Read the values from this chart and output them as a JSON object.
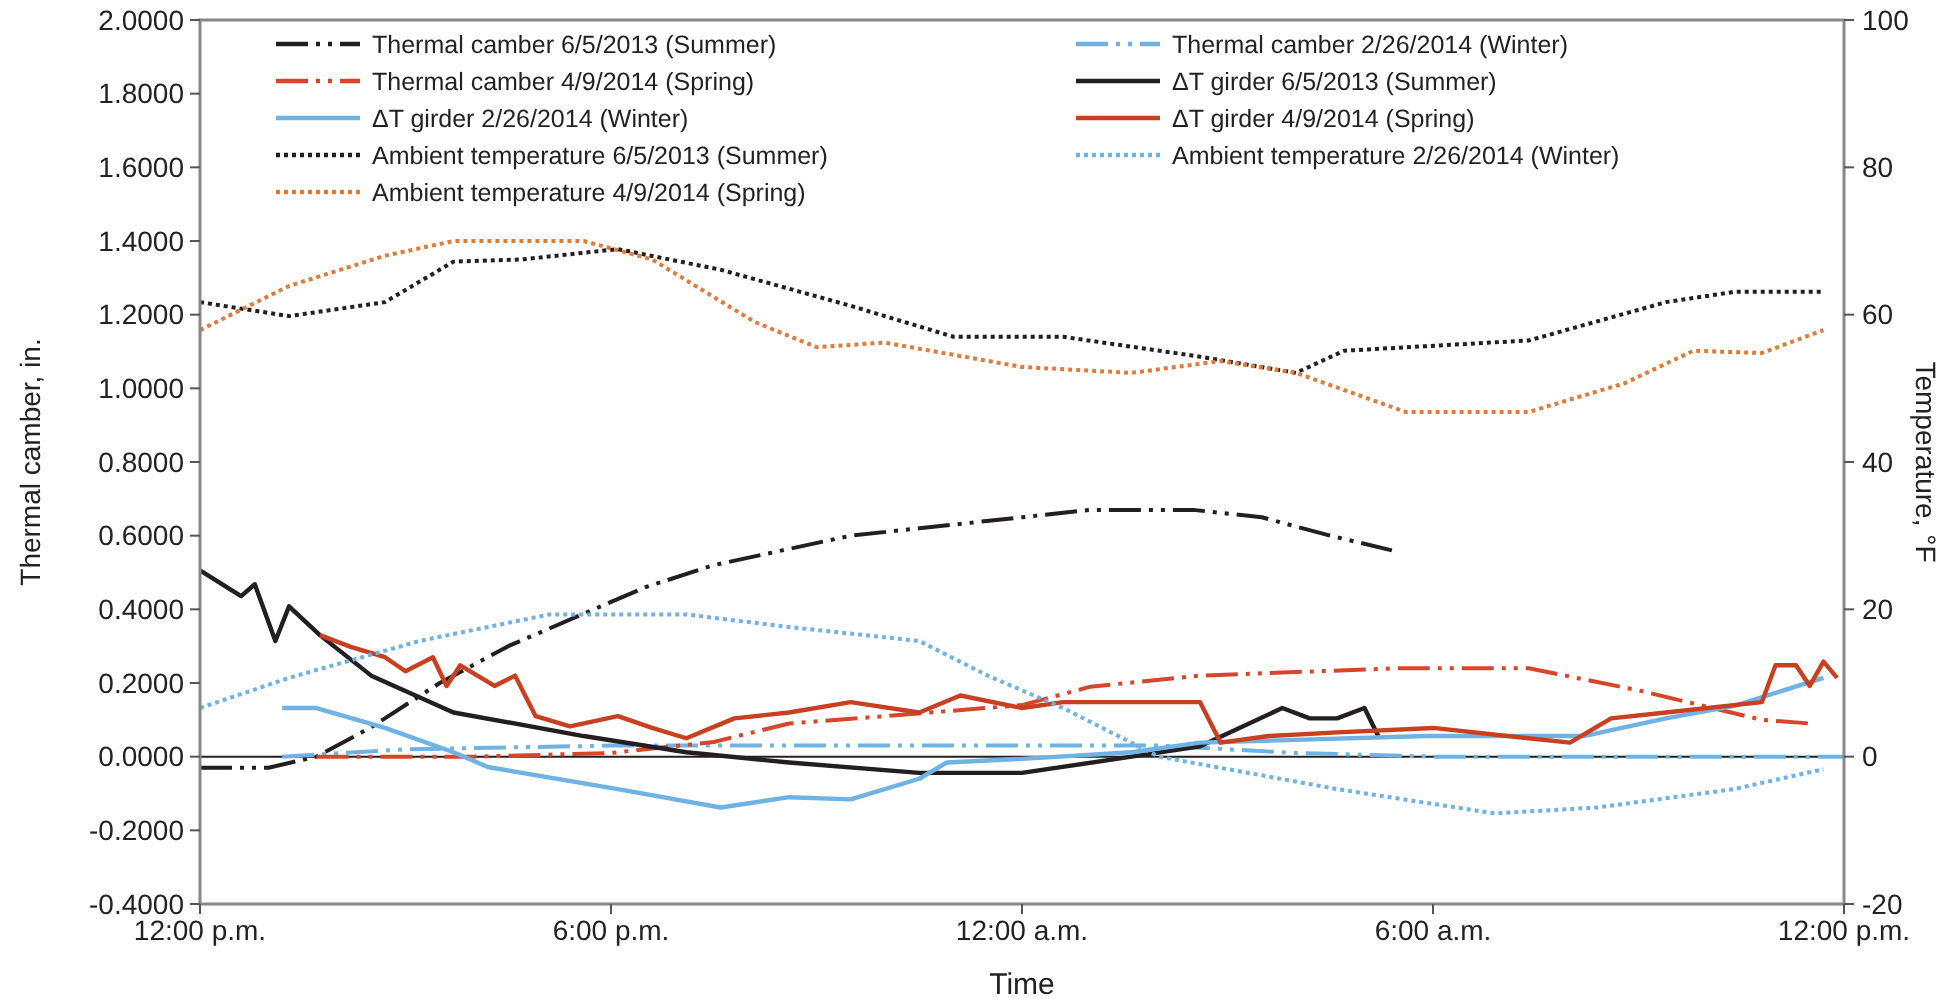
{
  "chart_data": {
    "type": "line",
    "xlabel": "Time",
    "ylabel": "Thermal camber, in.",
    "y2label": "Temperature, °F",
    "xlim": [
      "2013-06-05T12:00",
      "2013-06-06T12:00"
    ],
    "xticks": [
      {
        "value": "2013-06-05T12:00",
        "label": "12:00 p.m."
      },
      {
        "value": "2013-06-05T18:00",
        "label": "6:00 p.m."
      },
      {
        "value": "2013-06-06T00:00",
        "label": "12:00 a.m."
      },
      {
        "value": "2013-06-06T06:00",
        "label": "6:00 a.m."
      },
      {
        "value": "2013-06-06T12:00",
        "label": "12:00 p.m."
      }
    ],
    "ylim": [
      -0.4,
      2.0
    ],
    "yticks": [
      {
        "value": -0.4,
        "label": "-0.4000"
      },
      {
        "value": -0.2,
        "label": "-0.2000"
      },
      {
        "value": 0,
        "label": "0.0000"
      },
      {
        "value": 0.2,
        "label": "0.2000"
      },
      {
        "value": 0.4,
        "label": "0.4000"
      },
      {
        "value": 0.6,
        "label": "0.6000"
      },
      {
        "value": 0.8,
        "label": "0.8000"
      },
      {
        "value": 1.0,
        "label": "1.0000"
      },
      {
        "value": 1.2,
        "label": "1.2000"
      },
      {
        "value": 1.4,
        "label": "1.4000"
      },
      {
        "value": 1.6,
        "label": "1.6000"
      },
      {
        "value": 1.8,
        "label": "1.8000"
      },
      {
        "value": 2.0,
        "label": "2.0000"
      }
    ],
    "y2lim": [
      -20,
      100
    ],
    "y2ticks": [
      -20,
      0,
      20,
      40,
      60,
      80,
      100
    ],
    "grid": false,
    "legend": "top",
    "marker": "none",
    "ref_lines": [
      {
        "axis": "y",
        "value": 0,
        "color": "#231f20"
      }
    ],
    "series": [
      {
        "name": "Thermal camber 6/5/2013 (Summer)",
        "color": "#231f20",
        "line_style": "dashed",
        "x": [
          "2013-06-05T12:00",
          "2013-06-05T13:00",
          "2013-06-05T13:42",
          "2013-06-05T14:30",
          "2013-06-05T15:30",
          "2013-06-05T16:30",
          "2013-06-05T17:30",
          "2013-06-05T18:30",
          "2013-06-05T19:30",
          "2013-06-05T20:30",
          "2013-06-05T21:30",
          "2013-06-05T22:30",
          "2013-06-06T00:00",
          "2013-06-06T01:00",
          "2013-06-06T02:30",
          "2013-06-06T03:30",
          "2013-06-06T04:30",
          "2013-06-06T05:24"
        ],
        "values": [
          -0.03,
          -0.03,
          0,
          0.08,
          0.2,
          0.3,
          0.38,
          0.46,
          0.52,
          0.56,
          0.6,
          0.62,
          0.65,
          0.67,
          0.67,
          0.65,
          0.6,
          0.56
        ]
      },
      {
        "name": "Thermal camber 2/26/2014 (Winter)",
        "color": "#6fb2e4",
        "line_style": "dashed",
        "x": [
          "2013-06-05T13:12",
          "2013-06-05T15:00",
          "2013-06-05T18:00",
          "2013-06-06T00:00",
          "2013-06-06T02:00",
          "2013-06-06T04:00",
          "2013-06-06T06:00",
          "2013-06-06T12:00"
        ],
        "values": [
          0,
          0.02,
          0.03,
          0.03,
          0.03,
          0.01,
          0,
          0
        ]
      },
      {
        "name": "Thermal camber 4/9/2014 (Spring)",
        "color": "#d9452a",
        "line_style": "dashed",
        "x": [
          "2013-06-05T13:42",
          "2013-06-05T16:00",
          "2013-06-05T18:00",
          "2013-06-05T19:30",
          "2013-06-05T20:36",
          "2013-06-05T22:00",
          "2013-06-06T00:00",
          "2013-06-06T01:00",
          "2013-06-06T02:36",
          "2013-06-06T05:30",
          "2013-06-06T07:24",
          "2013-06-06T09:00",
          "2013-06-06T10:48",
          "2013-06-06T11:30"
        ],
        "values": [
          0,
          0,
          0.01,
          0.04,
          0.09,
          0.11,
          0.14,
          0.19,
          0.22,
          0.24,
          0.24,
          0.18,
          0.1,
          0.09
        ]
      },
      {
        "name": "ΔT girder 6/5/2013 (Summer)",
        "color": "#231f20",
        "line_style": "solid",
        "axis": "y2",
        "x": [
          "2013-06-05T12:00",
          "2013-06-05T12:36",
          "2013-06-05T12:48",
          "2013-06-05T13:06",
          "2013-06-05T13:18",
          "2013-06-05T13:45",
          "2013-06-05T14:30",
          "2013-06-05T15:42",
          "2013-06-05T17:36",
          "2013-06-05T19:06",
          "2013-06-05T20:36",
          "2013-06-05T22:30",
          "2013-06-06T00:00",
          "2013-06-06T01:36",
          "2013-06-06T02:36",
          "2013-06-06T03:48",
          "2013-06-06T04:12",
          "2013-06-06T04:36",
          "2013-06-06T05:00",
          "2013-06-06T05:12"
        ],
        "values": [
          25.3,
          21.8,
          23.4,
          15.7,
          20.4,
          16.5,
          11,
          6,
          2.8,
          0.6,
          -0.8,
          -2.2,
          -2.2,
          0,
          1.4,
          6.6,
          5.2,
          5.2,
          6.6,
          2.8
        ]
      },
      {
        "name": "ΔT girder 2/26/2014 (Winter)",
        "color": "#6fb2e4",
        "line_style": "solid",
        "axis": "y2",
        "x": [
          "2013-06-05T13:12",
          "2013-06-05T13:42",
          "2013-06-05T14:42",
          "2013-06-05T15:42",
          "2013-06-05T16:12",
          "2013-06-05T18:06",
          "2013-06-05T19:36",
          "2013-06-05T20:36",
          "2013-06-05T21:30",
          "2013-06-05T22:30",
          "2013-06-05T22:54",
          "2013-06-06T00:00",
          "2013-06-06T01:36",
          "2013-06-06T02:36",
          "2013-06-06T05:54",
          "2013-06-06T08:12",
          "2013-06-06T09:24",
          "2013-06-06T10:24",
          "2013-06-06T11:42"
        ],
        "values": [
          6.6,
          6.6,
          3.9,
          0.6,
          -1.4,
          -4.4,
          -6.9,
          -5.5,
          -5.8,
          -3,
          -0.8,
          -0.3,
          0.6,
          1.9,
          2.8,
          2.8,
          5.2,
          6.9,
          10.7
        ]
      },
      {
        "name": "ΔT girder 4/9/2014 (Spring)",
        "color": "#c8401f",
        "line_style": "solid",
        "axis": "y2",
        "x": [
          "2013-06-05T13:45",
          "2013-06-05T14:12",
          "2013-06-05T14:42",
          "2013-06-05T15:00",
          "2013-06-05T15:24",
          "2013-06-05T15:36",
          "2013-06-05T15:48",
          "2013-06-05T16:18",
          "2013-06-05T16:36",
          "2013-06-05T16:54",
          "2013-06-05T17:24",
          "2013-06-05T18:06",
          "2013-06-05T18:36",
          "2013-06-05T19:06",
          "2013-06-05T19:48",
          "2013-06-05T20:36",
          "2013-06-05T21:30",
          "2013-06-05T22:30",
          "2013-06-05T23:06",
          "2013-06-06T00:00",
          "2013-06-06T00:36",
          "2013-06-06T02:36",
          "2013-06-06T02:54",
          "2013-06-06T03:36",
          "2013-06-06T04:36",
          "2013-06-06T06:00",
          "2013-06-06T08:00",
          "2013-06-06T08:36",
          "2013-06-06T09:24",
          "2013-06-06T10:48",
          "2013-06-06T11:00",
          "2013-06-06T11:18",
          "2013-06-06T11:30",
          "2013-06-06T11:42",
          "2013-06-06T11:54"
        ],
        "values": [
          16.5,
          14.9,
          13.5,
          11.6,
          13.5,
          9.6,
          12.4,
          9.6,
          11,
          5.5,
          4.1,
          5.5,
          3.9,
          2.5,
          5.2,
          6,
          7.4,
          6,
          8.3,
          6.6,
          7.4,
          7.4,
          1.9,
          2.8,
          3.3,
          3.9,
          1.9,
          5.2,
          6,
          7.4,
          12.4,
          12.4,
          9.6,
          12.9,
          10.7
        ]
      },
      {
        "name": "Ambient temperature 6/5/2013 (Summer)",
        "color": "#231f20",
        "line_style": "dotted",
        "axis": "y2",
        "x": [
          "2013-06-05T12:00",
          "2013-06-05T13:18",
          "2013-06-05T14:42",
          "2013-06-05T15:42",
          "2013-06-05T16:42",
          "2013-06-05T18:06",
          "2013-06-05T19:36",
          "2013-06-05T21:30",
          "2013-06-05T23:00",
          "2013-06-06T00:00",
          "2013-06-06T00:36",
          "2013-06-06T02:36",
          "2013-06-06T04:00",
          "2013-06-06T04:42",
          "2013-06-06T07:24",
          "2013-06-06T09:24",
          "2013-06-06T10:24",
          "2013-06-06T11:42"
        ],
        "values": [
          61.7,
          59.8,
          61.7,
          67.2,
          67.5,
          68.9,
          66.1,
          61.2,
          57,
          57,
          57,
          54.3,
          52.1,
          55.1,
          56.5,
          61.7,
          63.1,
          63.1
        ]
      },
      {
        "name": "Ambient temperature 2/26/2014 (Winter)",
        "color": "#6fb2e4",
        "line_style": "dotted",
        "axis": "y2",
        "x": [
          "2013-06-05T12:00",
          "2013-06-05T13:18",
          "2013-06-05T15:12",
          "2013-06-05T17:06",
          "2013-06-05T19:06",
          "2013-06-05T20:36",
          "2013-06-05T22:30",
          "2013-06-05T23:30",
          "2013-06-06T00:36",
          "2013-06-06T02:00",
          "2013-06-06T04:36",
          "2013-06-06T06:54",
          "2013-06-06T08:24",
          "2013-06-06T10:24",
          "2013-06-06T11:42"
        ],
        "values": [
          6.6,
          10.7,
          15.7,
          19.3,
          19.3,
          17.6,
          15.7,
          11,
          6.6,
          0,
          -4.4,
          -7.7,
          -6.9,
          -4.4,
          -1.7
        ]
      },
      {
        "name": "Ambient temperature 4/9/2014 (Spring)",
        "color": "#e07b39",
        "line_style": "dotted",
        "axis": "y2",
        "x": [
          "2013-06-05T12:00",
          "2013-06-05T13:18",
          "2013-06-05T14:42",
          "2013-06-05T15:42",
          "2013-06-05T17:36",
          "2013-06-05T18:36",
          "2013-06-05T20:06",
          "2013-06-05T21:00",
          "2013-06-05T22:00",
          "2013-06-06T00:00",
          "2013-06-06T01:36",
          "2013-06-06T02:54",
          "2013-06-06T04:00",
          "2013-06-06T05:36",
          "2013-06-06T07:24",
          "2013-06-06T08:48",
          "2013-06-06T09:48",
          "2013-06-06T10:48",
          "2013-06-06T11:42"
        ],
        "values": [
          57.9,
          63.9,
          68,
          70,
          70,
          67.5,
          59,
          55.6,
          56.2,
          52.9,
          52.1,
          53.7,
          52.1,
          46.8,
          46.8,
          50.7,
          55.1,
          54.8,
          57.9
        ]
      }
    ]
  }
}
